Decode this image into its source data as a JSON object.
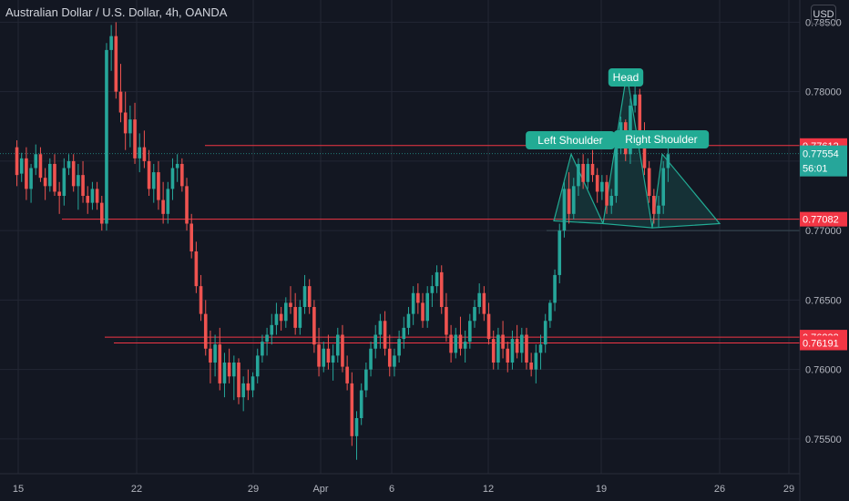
{
  "header": {
    "title": "Australian Dollar / U.S. Dollar, 4h, OANDA",
    "currency": "USD"
  },
  "colors": {
    "background": "#131722",
    "up": "#26a69a",
    "down": "#ef5350",
    "grid": "#232734",
    "axis_text": "#b2b5be",
    "level_line": "#f23645",
    "pattern": "#22ab94"
  },
  "chart_data": {
    "type": "candlestick",
    "title": "Australian Dollar / U.S. Dollar, 4h, OANDA",
    "y_ticks": [
      "0.78500",
      "0.78000",
      "0.77500",
      "0.77000",
      "0.76500",
      "0.76000",
      "0.75500"
    ],
    "x_ticks": [
      "15",
      "22",
      "29",
      "Apr",
      "6",
      "12",
      "19",
      "26",
      "29"
    ],
    "ylim": [
      0.7525,
      0.7866
    ],
    "grid": true,
    "candles": [
      {
        "o": 0.776,
        "h": 0.7765,
        "l": 0.7732,
        "c": 0.774
      },
      {
        "o": 0.7741,
        "h": 0.7756,
        "l": 0.7735,
        "c": 0.7752
      },
      {
        "o": 0.7752,
        "h": 0.776,
        "l": 0.7722,
        "c": 0.773
      },
      {
        "o": 0.773,
        "h": 0.7748,
        "l": 0.772,
        "c": 0.7745
      },
      {
        "o": 0.7745,
        "h": 0.7762,
        "l": 0.774,
        "c": 0.7755
      },
      {
        "o": 0.7755,
        "h": 0.776,
        "l": 0.7735,
        "c": 0.7738
      },
      {
        "o": 0.7738,
        "h": 0.7745,
        "l": 0.7722,
        "c": 0.7732
      },
      {
        "o": 0.7732,
        "h": 0.7752,
        "l": 0.7728,
        "c": 0.7748
      },
      {
        "o": 0.7748,
        "h": 0.7755,
        "l": 0.7725,
        "c": 0.7728
      },
      {
        "o": 0.7728,
        "h": 0.7735,
        "l": 0.7712,
        "c": 0.7725
      },
      {
        "o": 0.7725,
        "h": 0.7752,
        "l": 0.7718,
        "c": 0.7745
      },
      {
        "o": 0.7745,
        "h": 0.7755,
        "l": 0.774,
        "c": 0.775
      },
      {
        "o": 0.775,
        "h": 0.7755,
        "l": 0.7728,
        "c": 0.7732
      },
      {
        "o": 0.7732,
        "h": 0.7748,
        "l": 0.7715,
        "c": 0.774
      },
      {
        "o": 0.774,
        "h": 0.775,
        "l": 0.772,
        "c": 0.7725
      },
      {
        "o": 0.7725,
        "h": 0.7732,
        "l": 0.7712,
        "c": 0.772
      },
      {
        "o": 0.772,
        "h": 0.7735,
        "l": 0.7715,
        "c": 0.773
      },
      {
        "o": 0.773,
        "h": 0.7735,
        "l": 0.7715,
        "c": 0.772
      },
      {
        "o": 0.772,
        "h": 0.7725,
        "l": 0.77,
        "c": 0.7705
      },
      {
        "o": 0.7705,
        "h": 0.7835,
        "l": 0.77,
        "c": 0.783
      },
      {
        "o": 0.783,
        "h": 0.7848,
        "l": 0.7815,
        "c": 0.784
      },
      {
        "o": 0.784,
        "h": 0.785,
        "l": 0.7795,
        "c": 0.78
      },
      {
        "o": 0.78,
        "h": 0.782,
        "l": 0.7778,
        "c": 0.7785
      },
      {
        "o": 0.7785,
        "h": 0.78,
        "l": 0.7758,
        "c": 0.777
      },
      {
        "o": 0.777,
        "h": 0.779,
        "l": 0.776,
        "c": 0.778
      },
      {
        "o": 0.778,
        "h": 0.7792,
        "l": 0.7748,
        "c": 0.7752
      },
      {
        "o": 0.7752,
        "h": 0.777,
        "l": 0.7742,
        "c": 0.776
      },
      {
        "o": 0.776,
        "h": 0.7772,
        "l": 0.7745,
        "c": 0.775
      },
      {
        "o": 0.775,
        "h": 0.7758,
        "l": 0.7725,
        "c": 0.773
      },
      {
        "o": 0.773,
        "h": 0.7748,
        "l": 0.772,
        "c": 0.7742
      },
      {
        "o": 0.7742,
        "h": 0.775,
        "l": 0.7715,
        "c": 0.7722
      },
      {
        "o": 0.7722,
        "h": 0.7735,
        "l": 0.7705,
        "c": 0.7712
      },
      {
        "o": 0.7712,
        "h": 0.7735,
        "l": 0.7705,
        "c": 0.773
      },
      {
        "o": 0.773,
        "h": 0.7752,
        "l": 0.7722,
        "c": 0.7745
      },
      {
        "o": 0.7745,
        "h": 0.7755,
        "l": 0.7735,
        "c": 0.7748
      },
      {
        "o": 0.7748,
        "h": 0.7752,
        "l": 0.7728,
        "c": 0.7732
      },
      {
        "o": 0.7732,
        "h": 0.7738,
        "l": 0.77,
        "c": 0.7705
      },
      {
        "o": 0.7705,
        "h": 0.7712,
        "l": 0.768,
        "c": 0.7685
      },
      {
        "o": 0.7685,
        "h": 0.7692,
        "l": 0.7655,
        "c": 0.766
      },
      {
        "o": 0.766,
        "h": 0.7668,
        "l": 0.7635,
        "c": 0.764
      },
      {
        "o": 0.764,
        "h": 0.765,
        "l": 0.761,
        "c": 0.7615
      },
      {
        "o": 0.7615,
        "h": 0.7628,
        "l": 0.759,
        "c": 0.7605
      },
      {
        "o": 0.7605,
        "h": 0.7625,
        "l": 0.7595,
        "c": 0.7618
      },
      {
        "o": 0.7618,
        "h": 0.763,
        "l": 0.7585,
        "c": 0.759
      },
      {
        "o": 0.759,
        "h": 0.7612,
        "l": 0.758,
        "c": 0.7605
      },
      {
        "o": 0.7605,
        "h": 0.7615,
        "l": 0.759,
        "c": 0.7595
      },
      {
        "o": 0.7595,
        "h": 0.761,
        "l": 0.7578,
        "c": 0.7605
      },
      {
        "o": 0.7605,
        "h": 0.7608,
        "l": 0.7575,
        "c": 0.758
      },
      {
        "o": 0.758,
        "h": 0.7595,
        "l": 0.757,
        "c": 0.759
      },
      {
        "o": 0.759,
        "h": 0.76,
        "l": 0.7578,
        "c": 0.7585
      },
      {
        "o": 0.7585,
        "h": 0.7598,
        "l": 0.758,
        "c": 0.7595
      },
      {
        "o": 0.7595,
        "h": 0.7615,
        "l": 0.759,
        "c": 0.761
      },
      {
        "o": 0.761,
        "h": 0.7625,
        "l": 0.7605,
        "c": 0.762
      },
      {
        "o": 0.762,
        "h": 0.763,
        "l": 0.761,
        "c": 0.7625
      },
      {
        "o": 0.7625,
        "h": 0.764,
        "l": 0.7618,
        "c": 0.7632
      },
      {
        "o": 0.7632,
        "h": 0.7648,
        "l": 0.7625,
        "c": 0.764
      },
      {
        "o": 0.764,
        "h": 0.7645,
        "l": 0.7628,
        "c": 0.7635
      },
      {
        "o": 0.7635,
        "h": 0.7652,
        "l": 0.763,
        "c": 0.7648
      },
      {
        "o": 0.7648,
        "h": 0.766,
        "l": 0.764,
        "c": 0.7645
      },
      {
        "o": 0.7645,
        "h": 0.7655,
        "l": 0.7625,
        "c": 0.763
      },
      {
        "o": 0.763,
        "h": 0.765,
        "l": 0.7625,
        "c": 0.7645
      },
      {
        "o": 0.7645,
        "h": 0.7668,
        "l": 0.764,
        "c": 0.766
      },
      {
        "o": 0.766,
        "h": 0.7665,
        "l": 0.764,
        "c": 0.7645
      },
      {
        "o": 0.7645,
        "h": 0.765,
        "l": 0.7612,
        "c": 0.7618
      },
      {
        "o": 0.7618,
        "h": 0.763,
        "l": 0.7595,
        "c": 0.7602
      },
      {
        "o": 0.7602,
        "h": 0.762,
        "l": 0.7598,
        "c": 0.7615
      },
      {
        "o": 0.7615,
        "h": 0.7625,
        "l": 0.76,
        "c": 0.7605
      },
      {
        "o": 0.7605,
        "h": 0.7618,
        "l": 0.7592,
        "c": 0.761
      },
      {
        "o": 0.761,
        "h": 0.763,
        "l": 0.7605,
        "c": 0.7625
      },
      {
        "o": 0.7625,
        "h": 0.7632,
        "l": 0.7598,
        "c": 0.7602
      },
      {
        "o": 0.7602,
        "h": 0.761,
        "l": 0.7585,
        "c": 0.759
      },
      {
        "o": 0.759,
        "h": 0.7598,
        "l": 0.7545,
        "c": 0.7552
      },
      {
        "o": 0.7552,
        "h": 0.757,
        "l": 0.7535,
        "c": 0.7565
      },
      {
        "o": 0.7565,
        "h": 0.759,
        "l": 0.756,
        "c": 0.7585
      },
      {
        "o": 0.7585,
        "h": 0.7605,
        "l": 0.758,
        "c": 0.76
      },
      {
        "o": 0.76,
        "h": 0.762,
        "l": 0.7595,
        "c": 0.7615
      },
      {
        "o": 0.7615,
        "h": 0.7632,
        "l": 0.7608,
        "c": 0.7625
      },
      {
        "o": 0.7625,
        "h": 0.764,
        "l": 0.7615,
        "c": 0.7635
      },
      {
        "o": 0.7635,
        "h": 0.7642,
        "l": 0.761,
        "c": 0.7615
      },
      {
        "o": 0.7615,
        "h": 0.7625,
        "l": 0.7595,
        "c": 0.7602
      },
      {
        "o": 0.7602,
        "h": 0.7615,
        "l": 0.7595,
        "c": 0.761
      },
      {
        "o": 0.761,
        "h": 0.7628,
        "l": 0.7605,
        "c": 0.7622
      },
      {
        "o": 0.7622,
        "h": 0.7638,
        "l": 0.7615,
        "c": 0.763
      },
      {
        "o": 0.763,
        "h": 0.7645,
        "l": 0.7625,
        "c": 0.764
      },
      {
        "o": 0.764,
        "h": 0.766,
        "l": 0.7632,
        "c": 0.7655
      },
      {
        "o": 0.7655,
        "h": 0.7662,
        "l": 0.764,
        "c": 0.7648
      },
      {
        "o": 0.7648,
        "h": 0.7655,
        "l": 0.763,
        "c": 0.7635
      },
      {
        "o": 0.7635,
        "h": 0.766,
        "l": 0.763,
        "c": 0.7655
      },
      {
        "o": 0.7655,
        "h": 0.7668,
        "l": 0.7645,
        "c": 0.766
      },
      {
        "o": 0.766,
        "h": 0.7675,
        "l": 0.7655,
        "c": 0.767
      },
      {
        "o": 0.767,
        "h": 0.7675,
        "l": 0.764,
        "c": 0.7645
      },
      {
        "o": 0.7645,
        "h": 0.7655,
        "l": 0.762,
        "c": 0.7625
      },
      {
        "o": 0.7625,
        "h": 0.7632,
        "l": 0.7605,
        "c": 0.7612
      },
      {
        "o": 0.7612,
        "h": 0.763,
        "l": 0.7608,
        "c": 0.7625
      },
      {
        "o": 0.7625,
        "h": 0.7638,
        "l": 0.761,
        "c": 0.7615
      },
      {
        "o": 0.7615,
        "h": 0.7628,
        "l": 0.7605,
        "c": 0.762
      },
      {
        "o": 0.762,
        "h": 0.764,
        "l": 0.7615,
        "c": 0.7635
      },
      {
        "o": 0.7635,
        "h": 0.765,
        "l": 0.763,
        "c": 0.7645
      },
      {
        "o": 0.7645,
        "h": 0.7662,
        "l": 0.764,
        "c": 0.7655
      },
      {
        "o": 0.7655,
        "h": 0.766,
        "l": 0.7635,
        "c": 0.764
      },
      {
        "o": 0.764,
        "h": 0.7648,
        "l": 0.7618,
        "c": 0.7622
      },
      {
        "o": 0.7622,
        "h": 0.7628,
        "l": 0.76,
        "c": 0.7605
      },
      {
        "o": 0.7605,
        "h": 0.763,
        "l": 0.76,
        "c": 0.7625
      },
      {
        "o": 0.7625,
        "h": 0.7635,
        "l": 0.7608,
        "c": 0.7615
      },
      {
        "o": 0.7615,
        "h": 0.762,
        "l": 0.7598,
        "c": 0.7605
      },
      {
        "o": 0.7605,
        "h": 0.7628,
        "l": 0.76,
        "c": 0.7622
      },
      {
        "o": 0.7622,
        "h": 0.7632,
        "l": 0.7608,
        "c": 0.7612
      },
      {
        "o": 0.7612,
        "h": 0.763,
        "l": 0.7605,
        "c": 0.7625
      },
      {
        "o": 0.7625,
        "h": 0.763,
        "l": 0.76,
        "c": 0.7605
      },
      {
        "o": 0.7605,
        "h": 0.7612,
        "l": 0.7595,
        "c": 0.76
      },
      {
        "o": 0.76,
        "h": 0.7618,
        "l": 0.759,
        "c": 0.7612
      },
      {
        "o": 0.7612,
        "h": 0.7625,
        "l": 0.76,
        "c": 0.7618
      },
      {
        "o": 0.7618,
        "h": 0.764,
        "l": 0.7612,
        "c": 0.7635
      },
      {
        "o": 0.7635,
        "h": 0.765,
        "l": 0.763,
        "c": 0.7648
      },
      {
        "o": 0.7648,
        "h": 0.7672,
        "l": 0.7642,
        "c": 0.7668
      },
      {
        "o": 0.7668,
        "h": 0.7705,
        "l": 0.7662,
        "c": 0.77
      },
      {
        "o": 0.77,
        "h": 0.7735,
        "l": 0.7695,
        "c": 0.773
      },
      {
        "o": 0.773,
        "h": 0.7742,
        "l": 0.7705,
        "c": 0.7712
      },
      {
        "o": 0.7712,
        "h": 0.7738,
        "l": 0.7708,
        "c": 0.7732
      },
      {
        "o": 0.7732,
        "h": 0.7752,
        "l": 0.7725,
        "c": 0.7748
      },
      {
        "o": 0.7748,
        "h": 0.7755,
        "l": 0.773,
        "c": 0.7735
      },
      {
        "o": 0.7735,
        "h": 0.7752,
        "l": 0.773,
        "c": 0.7748
      },
      {
        "o": 0.7748,
        "h": 0.7758,
        "l": 0.7735,
        "c": 0.774
      },
      {
        "o": 0.774,
        "h": 0.7745,
        "l": 0.772,
        "c": 0.7728
      },
      {
        "o": 0.7728,
        "h": 0.774,
        "l": 0.7722,
        "c": 0.7735
      },
      {
        "o": 0.7735,
        "h": 0.774,
        "l": 0.7712,
        "c": 0.7718
      },
      {
        "o": 0.7718,
        "h": 0.773,
        "l": 0.7712,
        "c": 0.7725
      },
      {
        "o": 0.7725,
        "h": 0.7768,
        "l": 0.772,
        "c": 0.7765
      },
      {
        "o": 0.7765,
        "h": 0.7782,
        "l": 0.7755,
        "c": 0.7778
      },
      {
        "o": 0.7778,
        "h": 0.778,
        "l": 0.775,
        "c": 0.7755
      },
      {
        "o": 0.7755,
        "h": 0.7795,
        "l": 0.7748,
        "c": 0.779
      },
      {
        "o": 0.779,
        "h": 0.7805,
        "l": 0.7785,
        "c": 0.7798
      },
      {
        "o": 0.7798,
        "h": 0.7802,
        "l": 0.7768,
        "c": 0.7772
      },
      {
        "o": 0.7772,
        "h": 0.7778,
        "l": 0.774,
        "c": 0.7745
      },
      {
        "o": 0.7745,
        "h": 0.775,
        "l": 0.772,
        "c": 0.7725
      },
      {
        "o": 0.7725,
        "h": 0.773,
        "l": 0.7705,
        "c": 0.7712
      },
      {
        "o": 0.7712,
        "h": 0.7725,
        "l": 0.7702,
        "c": 0.7718
      },
      {
        "o": 0.7718,
        "h": 0.775,
        "l": 0.7712,
        "c": 0.7745
      },
      {
        "o": 0.7745,
        "h": 0.776,
        "l": 0.7735,
        "c": 0.7755
      }
    ],
    "levels": [
      {
        "price": 0.77612,
        "label": "0.77612"
      },
      {
        "price": 0.77082,
        "label": "0.77082"
      },
      {
        "price": 0.76233,
        "label": "0.76233"
      },
      {
        "price": 0.76191,
        "label": "0.76191"
      }
    ],
    "current_price": {
      "price": 0.77554,
      "label": "0.77554",
      "countdown": "56:01"
    },
    "pattern_labels": [
      "Left Shoulder",
      "Head",
      "Right Shoulder"
    ]
  }
}
